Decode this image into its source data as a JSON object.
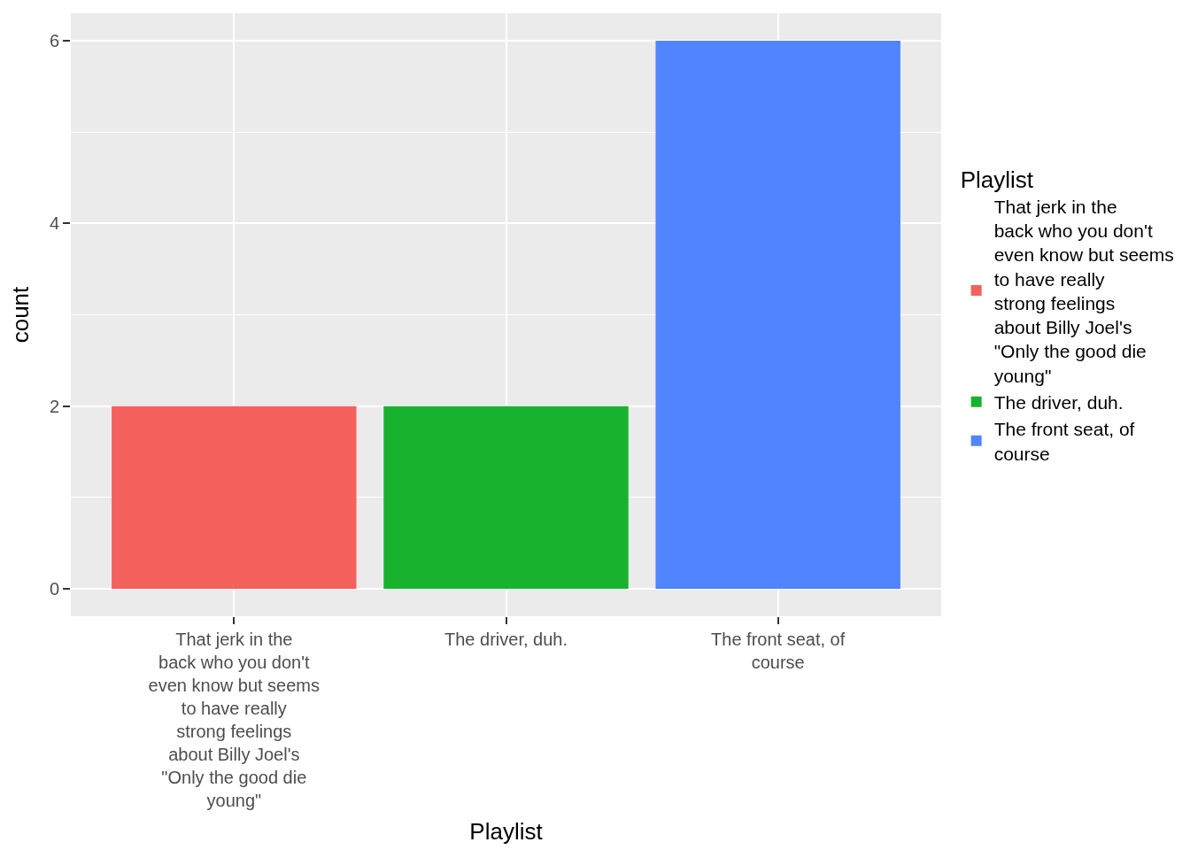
{
  "chart_data": {
    "type": "bar",
    "xlabel": "Playlist",
    "ylabel": "count",
    "legend_title": "Playlist",
    "categories": [
      "That jerk in the back who you don't even know but seems to have really strong feelings about Billy Joel's \"Only the good die young\"",
      "The driver, duh.",
      "The front seat, of course"
    ],
    "series": [
      {
        "name": "That jerk in the back who you don't even know but seems to have really strong feelings about Billy Joel's \"Only the good die young\"",
        "color": "#f5615c",
        "values": [
          2,
          null,
          null
        ]
      },
      {
        "name": "The driver, duh.",
        "color": "#19b22e",
        "values": [
          null,
          2,
          null
        ]
      },
      {
        "name": "The front seat, of course",
        "color": "#5085ff",
        "values": [
          null,
          null,
          6
        ]
      }
    ],
    "ylim": [
      -0.3,
      6.3
    ],
    "yticks": [
      0,
      2,
      4,
      6
    ],
    "grid": true,
    "legend": "right"
  }
}
